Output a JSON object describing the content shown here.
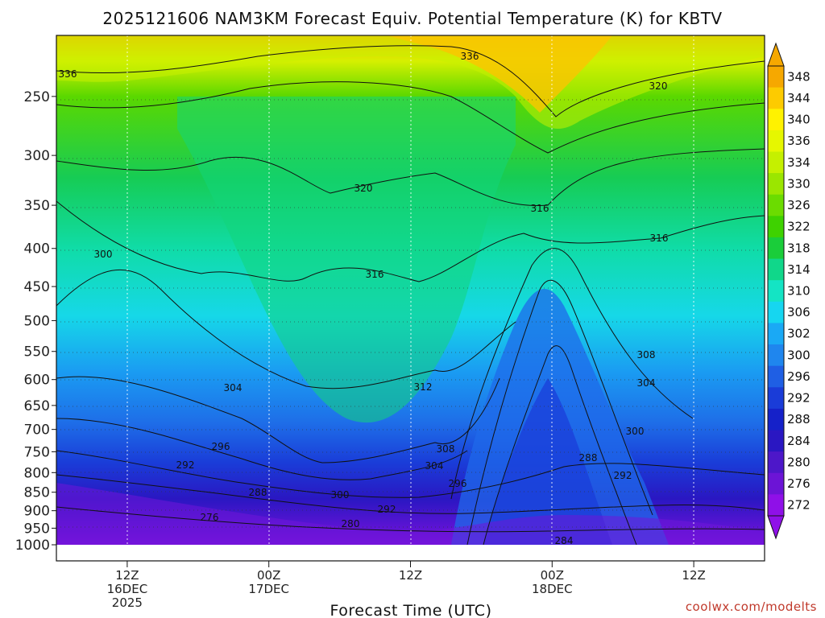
{
  "chart_data": {
    "type": "heatmap",
    "title": "2025121606 NAM3KM Forecast Equiv. Potential Temperature (K) for KBTV",
    "xlabel": "Forecast Time (UTC)",
    "ylabel": "",
    "y_scale": "log-pressure",
    "y_range": [
      1000,
      200
    ],
    "y_ticks": [
      "250",
      "300",
      "350",
      "400",
      "450",
      "500",
      "550",
      "600",
      "650",
      "700",
      "750",
      "800",
      "850",
      "900",
      "950",
      "1000"
    ],
    "x_range": [
      "2025-12-16T06Z",
      "2025-12-18T18Z"
    ],
    "x_ticks": [
      {
        "time": "2025-12-16T12Z",
        "line1": "12Z",
        "line2": "16DEC",
        "line3": "2025"
      },
      {
        "time": "2025-12-17T00Z",
        "line1": "00Z",
        "line2": "17DEC",
        "line3": ""
      },
      {
        "time": "2025-12-17T12Z",
        "line1": "12Z",
        "line2": "",
        "line3": ""
      },
      {
        "time": "2025-12-18T00Z",
        "line1": "00Z",
        "line2": "18DEC",
        "line3": ""
      },
      {
        "time": "2025-12-18T12Z",
        "line1": "12Z",
        "line2": "",
        "line3": ""
      }
    ],
    "grid": true,
    "colorbar": {
      "labels": [
        "348",
        "344",
        "340",
        "336",
        "334",
        "330",
        "326",
        "322",
        "318",
        "314",
        "310",
        "306",
        "302",
        "300",
        "296",
        "292",
        "288",
        "284",
        "280",
        "276",
        "272"
      ],
      "colors": [
        "#f6a800",
        "#fdcb00",
        "#fff200",
        "#e6f700",
        "#c5f000",
        "#9be600",
        "#6bdc00",
        "#3ed200",
        "#1acd3a",
        "#10d78a",
        "#14e4c4",
        "#16d6f0",
        "#1aa9f5",
        "#1f86ee",
        "#1f5fe4",
        "#1a3cd8",
        "#1521c9",
        "#2a17c2",
        "#4d17c9",
        "#6c14d6",
        "#8f10e8"
      ]
    },
    "contour_labels": [
      "336",
      "336",
      "320",
      "320",
      "316",
      "316",
      "316",
      "300",
      "304",
      "312",
      "308",
      "308",
      "304",
      "296",
      "292",
      "304",
      "300",
      "288",
      "292",
      "276",
      "288",
      "300",
      "292",
      "280",
      "284"
    ],
    "terrain_color": "#a0522d"
  },
  "credit": "coolwx.com/modelts"
}
